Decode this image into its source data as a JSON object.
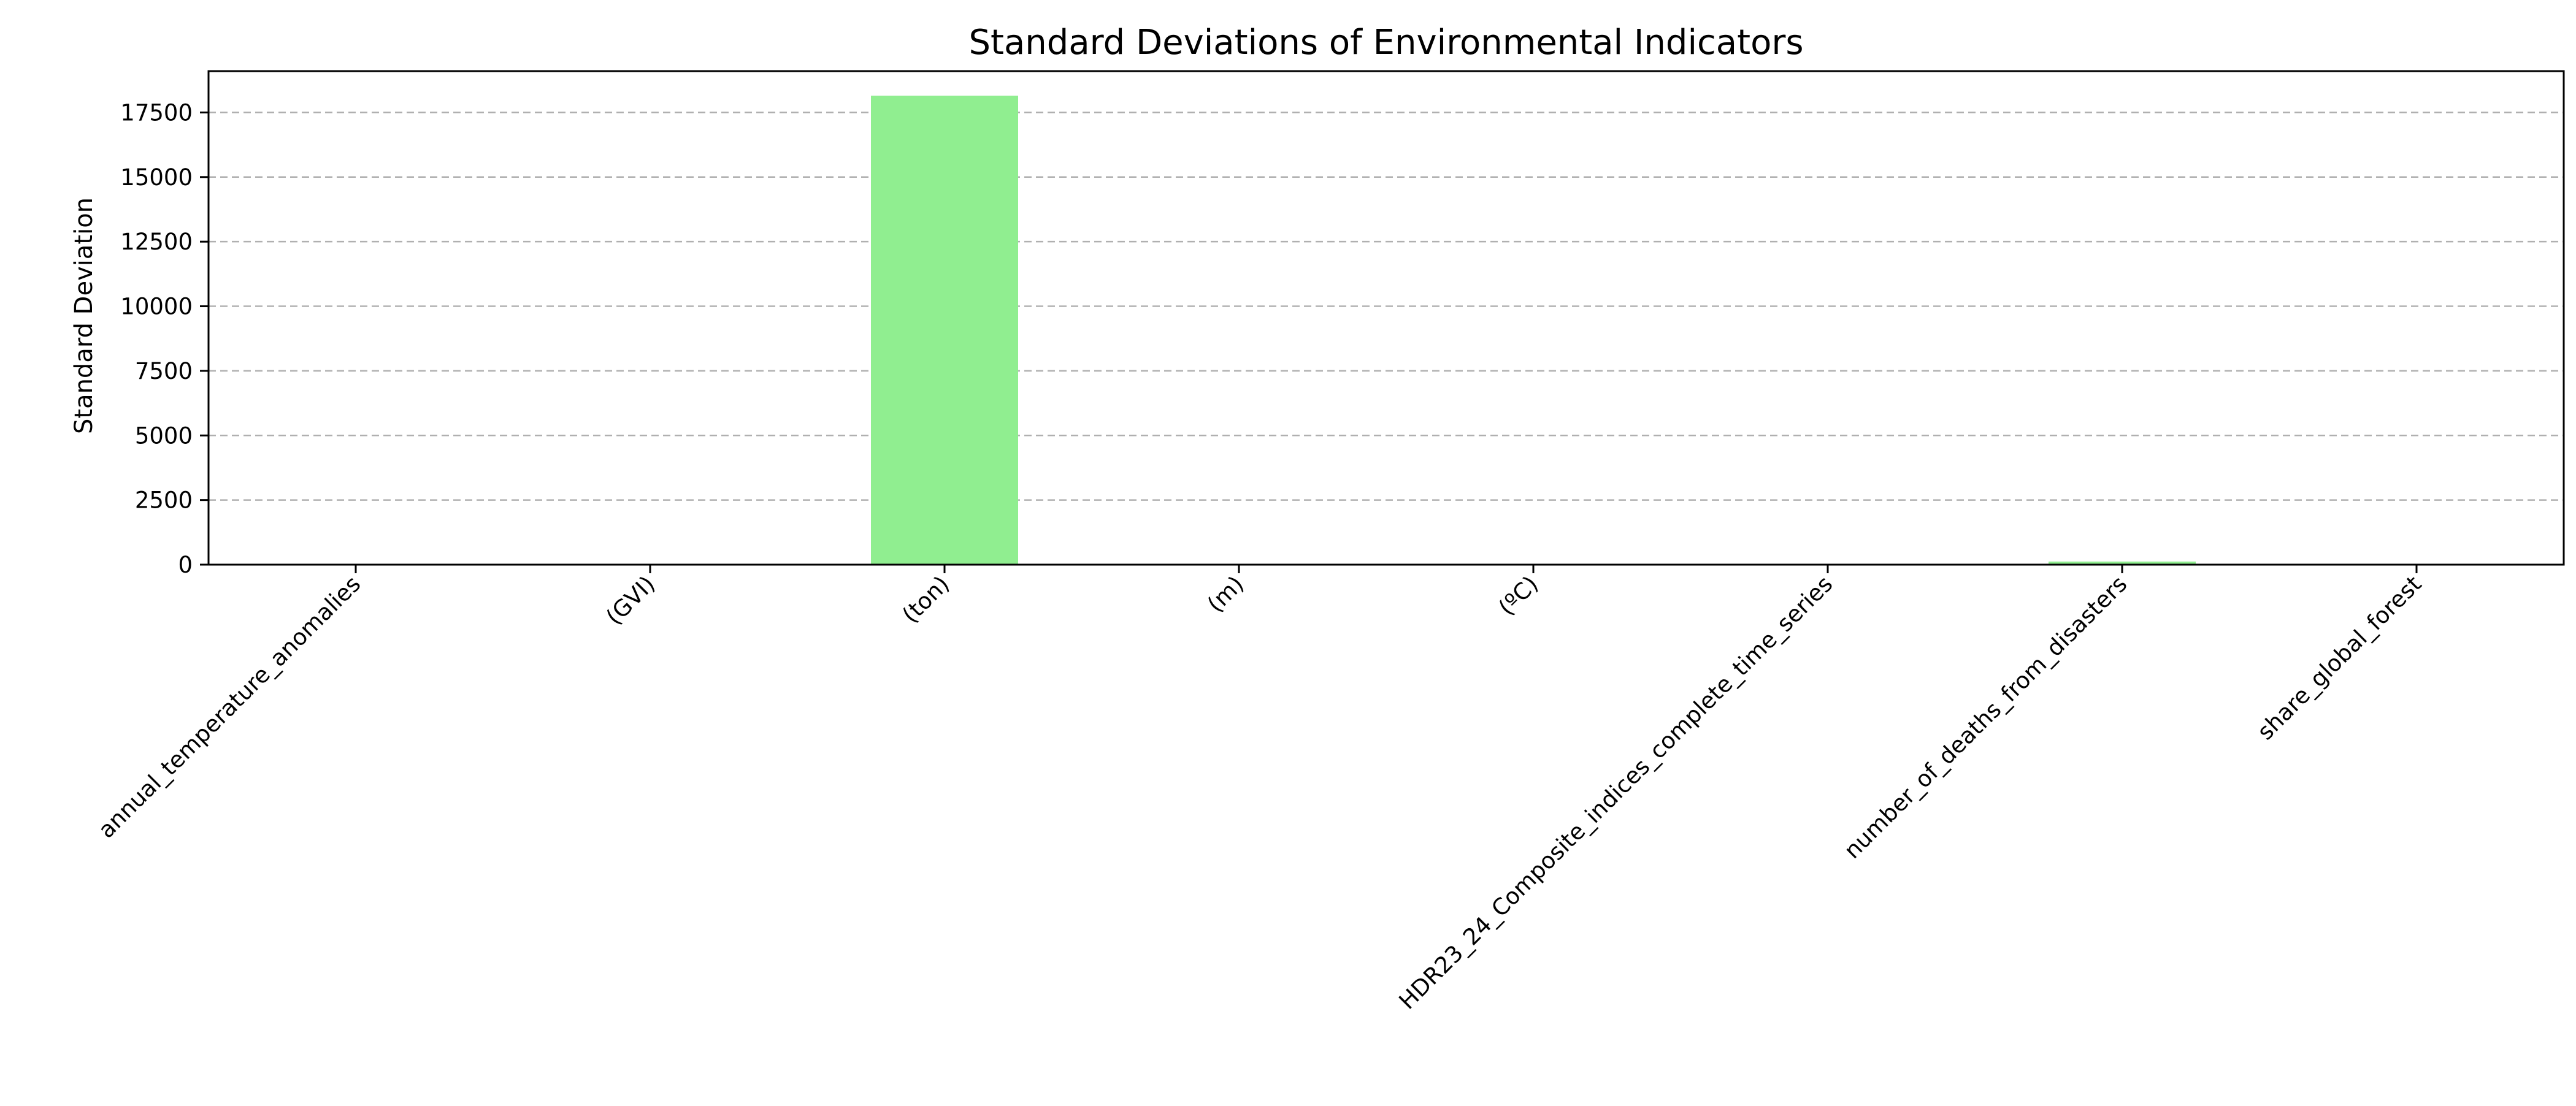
{
  "chart_data": {
    "type": "bar",
    "title": "Standard Deviations of Environmental Indicators",
    "xlabel": "",
    "ylabel": "Standard Deviation",
    "categories": [
      "annual_temperature_anomalies",
      "(GVI)",
      "(ton)",
      "(m)",
      "(ºC)",
      "HDR23_24_Composite_indices_complete_time_series",
      "number_of_deaths_from_disasters",
      "share_global_forest"
    ],
    "values": [
      0.5,
      0.1,
      18150,
      3,
      0.5,
      20,
      120,
      2
    ],
    "ylim": [
      0,
      19100
    ],
    "yticks": [
      0,
      2500,
      5000,
      7500,
      10000,
      12500,
      15000,
      17500
    ],
    "grid": true,
    "bar_color": "#90ee90",
    "grid_color": "#b0b0b0"
  }
}
